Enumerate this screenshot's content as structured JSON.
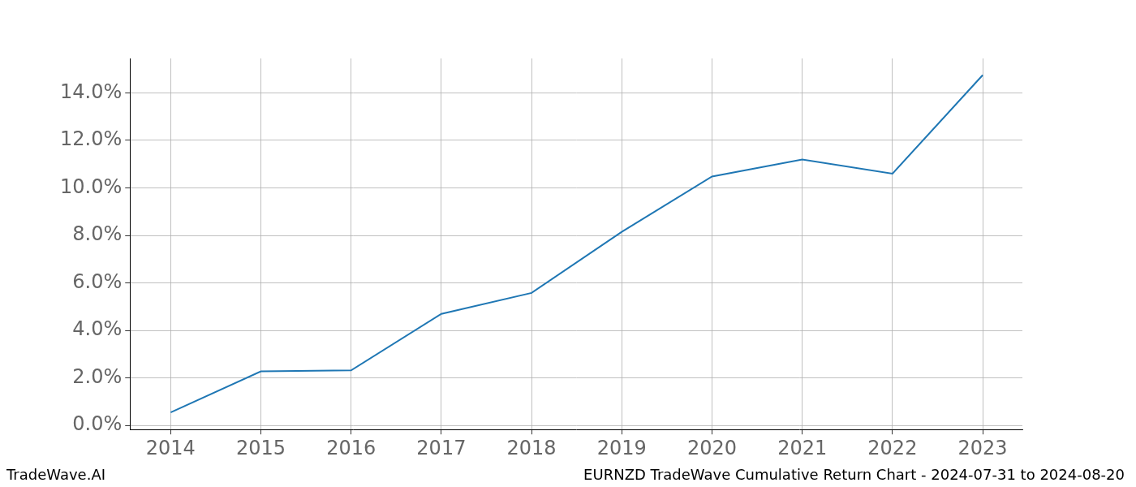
{
  "chart_data": {
    "type": "line",
    "annotations": [
      "TradeWave.AI",
      "EURNZD TradeWave Cumulative Return Chart - 2024-07-31 to 2024-08-20"
    ],
    "x": [
      2014,
      2015,
      2016,
      2017,
      2018,
      2019,
      2020,
      2021,
      2022,
      2023
    ],
    "values": [
      0.55,
      2.28,
      2.32,
      4.7,
      5.58,
      8.15,
      10.48,
      11.2,
      10.6,
      14.75
    ],
    "color": "#1f77b4",
    "marker": "none",
    "line_style": "solid",
    "xlim": [
      2013.55,
      2023.44
    ],
    "xticks": [
      2014,
      2015,
      2016,
      2017,
      2018,
      2019,
      2020,
      2021,
      2022,
      2023
    ],
    "ylim": [
      -0.17,
      15.45
    ],
    "yticks": [
      {
        "value": 0,
        "label": "0.0%"
      },
      {
        "value": 2,
        "label": "2.0%"
      },
      {
        "value": 4,
        "label": "4.0%"
      },
      {
        "value": 6,
        "label": "6.0%"
      },
      {
        "value": 8,
        "label": "8.0%"
      },
      {
        "value": 10,
        "label": "10.0%"
      },
      {
        "value": 12,
        "label": "12.0%"
      },
      {
        "value": 14,
        "label": "14.0%"
      }
    ],
    "grid": true
  }
}
